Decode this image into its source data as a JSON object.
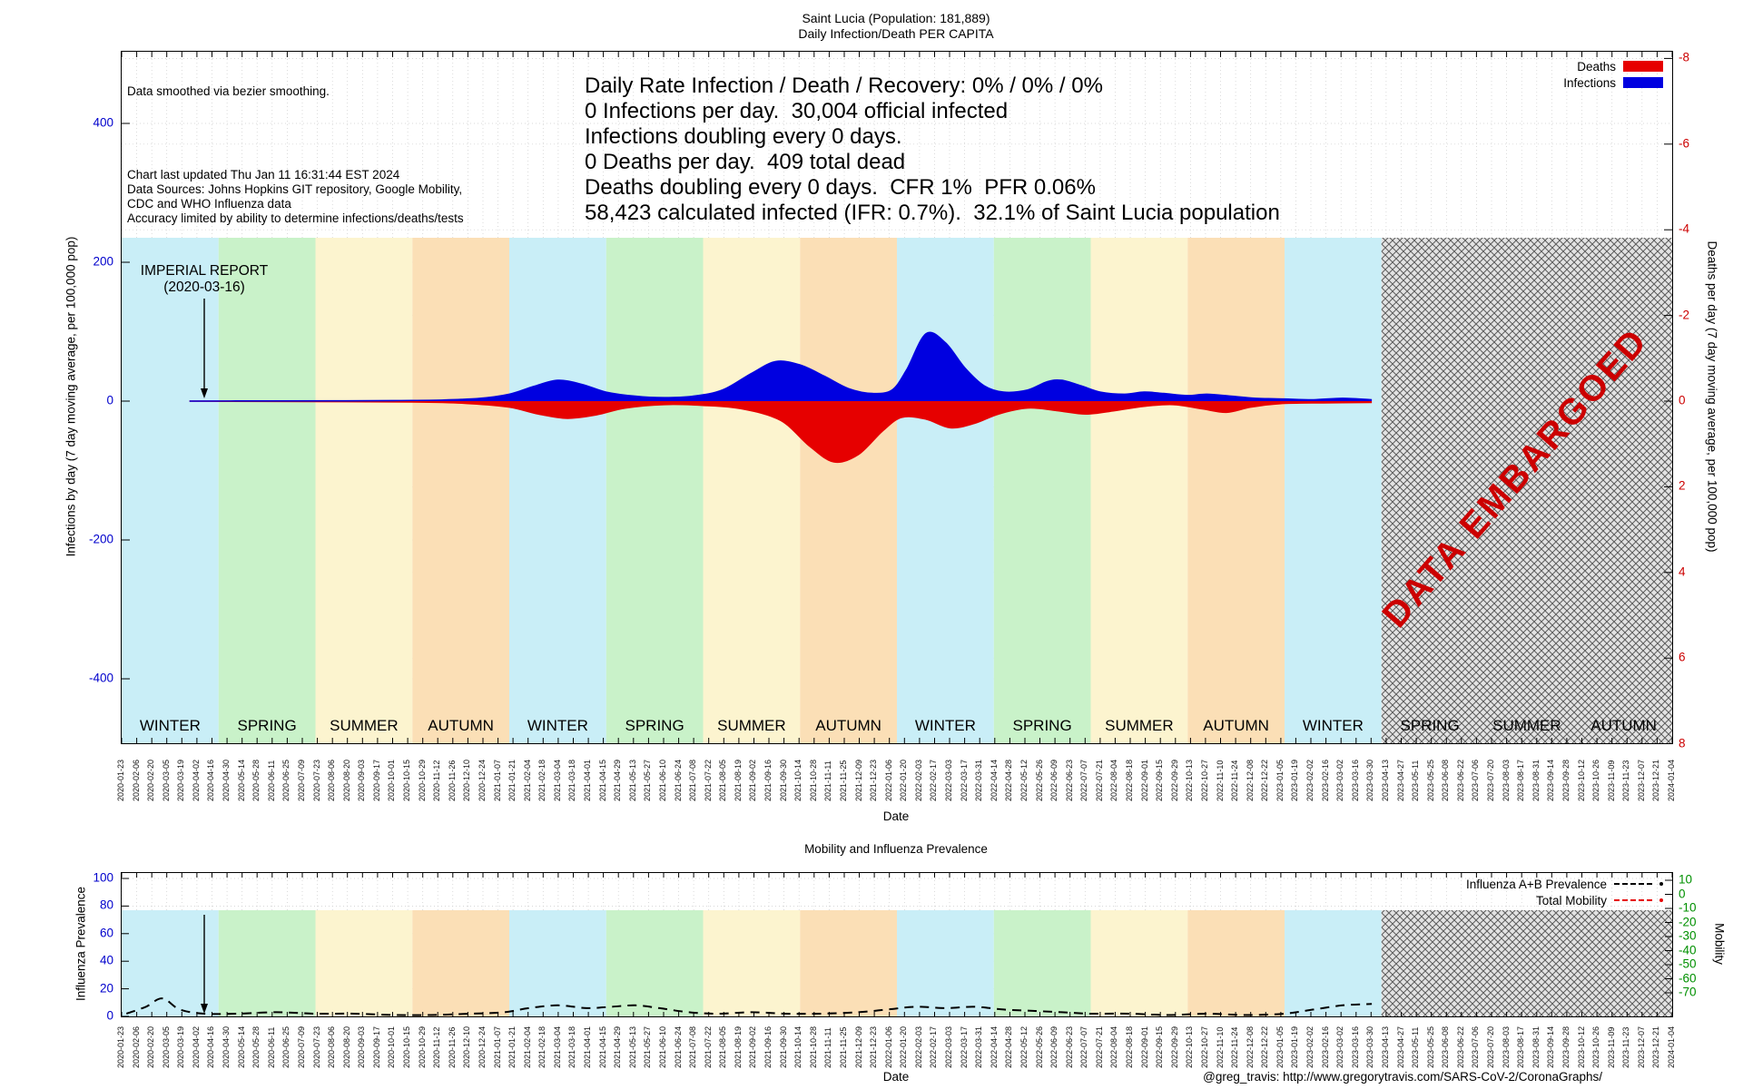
{
  "page": {
    "title_line1": "Saint Lucia (Population: 181,889)",
    "title_line2": "Daily Infection/Death PER CAPITA",
    "footer_credit": "@greg_travis: http://www.gregorytravis.com/SARS-CoV-2/CoronaGraphs/"
  },
  "colors": {
    "infections": "#0000e0",
    "deaths": "#e60000",
    "left_axis_text": "#0000cc",
    "right_axis_text": "#cc0000",
    "flu_axis_text": "#0000cc",
    "mobility_axis_text": "#009000",
    "embargo_text": "#cc0000",
    "seasons": {
      "WINTER": "#c9eef7",
      "SPRING": "#c9f2c9",
      "SUMMER": "#fcf4cf",
      "AUTUMN": "#fbdfb6"
    }
  },
  "main_chart": {
    "info_note": "Data smoothed via bezier smoothing.",
    "info_lines": [
      "Chart last updated Thu Jan 11 16:31:44 EST 2024",
      "Data Sources: Johns Hopkins GIT repository, Google Mobility,",
      "CDC and WHO Influenza data",
      "Accuracy limited by ability to determine infections/deaths/tests"
    ],
    "stats_lines": [
      "Daily Rate Infection / Death / Recovery: 0% / 0% / 0%",
      "0 Infections per day.  30,004 official infected",
      "Infections doubling every 0 days.",
      "0 Deaths per day.  409 total dead",
      "Deaths doubling every 0 days.  CFR 1%  PFR 0.06%",
      "58,423 calculated infected (IFR: 0.7%).  32.1% of Saint Lucia population"
    ],
    "legend": [
      {
        "label": "Deaths",
        "color": "#e60000"
      },
      {
        "label": "Infections",
        "color": "#0000e0"
      }
    ],
    "ylabel_left": "Infections by day (7 day moving average, per 100,000 pop)",
    "ylabel_right": "Deaths per day (7 day moving average, per 100,000 pop)",
    "xlabel": "Date",
    "left_ticks": [
      400,
      200,
      0,
      -200,
      -400
    ],
    "right_ticks": [
      -8,
      -6,
      -4,
      -2,
      0,
      2,
      4,
      6,
      8
    ],
    "annotation": {
      "line1": "IMPERIAL REPORT",
      "line2": "(2020-03-16)"
    },
    "embargo_label": "DATA EMBARGOED",
    "seasons": [
      "WINTER",
      "SPRING",
      "SUMMER",
      "AUTUMN",
      "WINTER",
      "SPRING",
      "SUMMER",
      "AUTUMN",
      "WINTER",
      "SPRING",
      "SUMMER",
      "AUTUMN",
      "WINTER",
      "SPRING",
      "SUMMER",
      "AUTUMN"
    ]
  },
  "bottom_chart": {
    "title": "Mobility and Influenza Prevalence",
    "ylabel_left": "Influenza Prevalence",
    "ylabel_right": "Mobility",
    "xlabel": "Date",
    "left_ticks": [
      100,
      80,
      60,
      40,
      20,
      0
    ],
    "right_ticks": [
      10,
      0,
      -10,
      -20,
      -30,
      -40,
      -50,
      -60,
      -70
    ],
    "legend": [
      {
        "label": "Influenza A+B Prevalence",
        "color": "#000000"
      },
      {
        "label": "Total Mobility",
        "color": "#e60000"
      }
    ]
  },
  "x_tick_dates": [
    "2020-01-23",
    "2020-02-06",
    "2020-02-20",
    "2020-03-05",
    "2020-03-19",
    "2020-04-02",
    "2020-04-16",
    "2020-04-30",
    "2020-05-14",
    "2020-05-28",
    "2020-06-11",
    "2020-06-25",
    "2020-07-09",
    "2020-07-23",
    "2020-08-06",
    "2020-08-20",
    "2020-09-03",
    "2020-09-17",
    "2020-10-01",
    "2020-10-15",
    "2020-10-29",
    "2020-11-12",
    "2020-11-26",
    "2020-12-10",
    "2020-12-24",
    "2021-01-07",
    "2021-01-21",
    "2021-02-04",
    "2021-02-18",
    "2021-03-04",
    "2021-03-18",
    "2021-04-01",
    "2021-04-15",
    "2021-04-29",
    "2021-05-13",
    "2021-05-27",
    "2021-06-10",
    "2021-06-24",
    "2021-07-08",
    "2021-07-22",
    "2021-08-05",
    "2021-08-19",
    "2021-09-02",
    "2021-09-16",
    "2021-09-30",
    "2021-10-14",
    "2021-10-28",
    "2021-11-11",
    "2021-11-25",
    "2021-12-09",
    "2021-12-23",
    "2022-01-06",
    "2022-01-20",
    "2022-02-03",
    "2022-02-17",
    "2022-03-03",
    "2022-03-17",
    "2022-03-31",
    "2022-04-14",
    "2022-04-28",
    "2022-05-12",
    "2022-05-26",
    "2022-06-09",
    "2022-06-23",
    "2022-07-07",
    "2022-07-21",
    "2022-08-04",
    "2022-08-18",
    "2022-09-01",
    "2022-09-15",
    "2022-09-29",
    "2022-10-13",
    "2022-10-27",
    "2022-11-10",
    "2022-11-24",
    "2022-12-08",
    "2022-12-22",
    "2023-01-05",
    "2023-01-19",
    "2023-02-02",
    "2023-02-16",
    "2023-03-02",
    "2023-03-16",
    "2023-03-30",
    "2023-04-13",
    "2023-04-27",
    "2023-05-11",
    "2023-05-25",
    "2023-06-08",
    "2023-06-22",
    "2023-07-06",
    "2023-07-20",
    "2023-08-03",
    "2023-08-17",
    "2023-08-31",
    "2023-09-14",
    "2023-09-28",
    "2023-10-12",
    "2023-10-26",
    "2023-11-09",
    "2023-11-23",
    "2023-12-07",
    "2023-12-21",
    "2024-01-04"
  ],
  "chart_data": [
    {
      "type": "area",
      "title": "Saint Lucia (Population: 181,889) Daily Infection/Death PER CAPITA",
      "x_unit": "season-band index, 0 = start Winter 2020, each band = one season (~3 months), 16 bands ending Autumn 2023",
      "embargo_start_band": 13,
      "left_axis": {
        "label": "Infections by day (7 day moving average, per 100,000 pop)",
        "ticks": [
          400,
          200,
          0,
          -200,
          -400
        ],
        "range": [
          -500,
          500
        ]
      },
      "right_axis": {
        "label": "Deaths per day (7 day moving average, per 100,000 pop)",
        "ticks": [
          -8,
          -6,
          -4,
          -2,
          0,
          2,
          4,
          6,
          8
        ],
        "range": [
          -8,
          8
        ],
        "inverted": true
      },
      "series": [
        {
          "name": "Deaths",
          "axis": "right",
          "color": "#e60000",
          "style": "filled-area-below-zero",
          "points": [
            [
              0.7,
              0
            ],
            [
              3.0,
              0.02
            ],
            [
              3.6,
              0.06
            ],
            [
              4.0,
              0.14
            ],
            [
              4.3,
              0.3
            ],
            [
              4.6,
              0.4
            ],
            [
              4.9,
              0.32
            ],
            [
              5.2,
              0.16
            ],
            [
              5.6,
              0.08
            ],
            [
              6.0,
              0.1
            ],
            [
              6.4,
              0.18
            ],
            [
              6.8,
              0.45
            ],
            [
              7.1,
              1.05
            ],
            [
              7.35,
              1.42
            ],
            [
              7.6,
              1.25
            ],
            [
              7.85,
              0.7
            ],
            [
              8.05,
              0.38
            ],
            [
              8.3,
              0.42
            ],
            [
              8.55,
              0.62
            ],
            [
              8.8,
              0.52
            ],
            [
              9.05,
              0.3
            ],
            [
              9.35,
              0.16
            ],
            [
              9.65,
              0.22
            ],
            [
              9.95,
              0.3
            ],
            [
              10.25,
              0.22
            ],
            [
              10.55,
              0.12
            ],
            [
              10.85,
              0.08
            ],
            [
              11.15,
              0.18
            ],
            [
              11.4,
              0.26
            ],
            [
              11.65,
              0.14
            ],
            [
              11.95,
              0.06
            ],
            [
              12.4,
              0.04
            ],
            [
              12.9,
              0.03
            ]
          ]
        },
        {
          "name": "Infections",
          "axis": "left",
          "color": "#0000e0",
          "style": "filled-area-above-zero",
          "points": [
            [
              0.7,
              0
            ],
            [
              1.5,
              0.3
            ],
            [
              2.2,
              0.4
            ],
            [
              2.8,
              0.8
            ],
            [
              3.3,
              1.5
            ],
            [
              3.7,
              4
            ],
            [
              4.0,
              10
            ],
            [
              4.25,
              21
            ],
            [
              4.5,
              30
            ],
            [
              4.75,
              24
            ],
            [
              5.0,
              13
            ],
            [
              5.3,
              7
            ],
            [
              5.6,
              5
            ],
            [
              5.9,
              7
            ],
            [
              6.2,
              16
            ],
            [
              6.5,
              40
            ],
            [
              6.75,
              57
            ],
            [
              7.0,
              52
            ],
            [
              7.25,
              36
            ],
            [
              7.5,
              18
            ],
            [
              7.75,
              11
            ],
            [
              7.95,
              16
            ],
            [
              8.1,
              45
            ],
            [
              8.3,
              97
            ],
            [
              8.5,
              84
            ],
            [
              8.7,
              48
            ],
            [
              8.9,
              22
            ],
            [
              9.1,
              13
            ],
            [
              9.35,
              16
            ],
            [
              9.55,
              28
            ],
            [
              9.7,
              30
            ],
            [
              9.9,
              22
            ],
            [
              10.1,
              13
            ],
            [
              10.35,
              10
            ],
            [
              10.55,
              13
            ],
            [
              10.75,
              11
            ],
            [
              11.0,
              8
            ],
            [
              11.2,
              10
            ],
            [
              11.45,
              7
            ],
            [
              11.7,
              4
            ],
            [
              12.0,
              3
            ],
            [
              12.3,
              2
            ],
            [
              12.6,
              4
            ],
            [
              12.9,
              2
            ]
          ]
        }
      ]
    },
    {
      "type": "line",
      "title": "Mobility and Influenza Prevalence",
      "x_unit": "same season-band axis as main chart",
      "embargo_start_band": 13,
      "left_axis": {
        "label": "Influenza Prevalence",
        "ticks": [
          100,
          80,
          60,
          40,
          20,
          0
        ],
        "range": [
          0,
          104
        ]
      },
      "right_axis": {
        "label": "Mobility",
        "ticks": [
          10,
          0,
          -10,
          -20,
          -30,
          -40,
          -50,
          -60,
          -70
        ]
      },
      "series": [
        {
          "name": "Influenza A+B Prevalence",
          "axis": "left",
          "color": "#000000",
          "style": "dashed",
          "points": [
            [
              0.05,
              2
            ],
            [
              0.25,
              7
            ],
            [
              0.42,
              13
            ],
            [
              0.6,
              5
            ],
            [
              0.85,
              2
            ],
            [
              1.2,
              2
            ],
            [
              1.6,
              3
            ],
            [
              2.0,
              2
            ],
            [
              2.4,
              2
            ],
            [
              2.8,
              1
            ],
            [
              3.2,
              1
            ],
            [
              3.6,
              2
            ],
            [
              3.95,
              3
            ],
            [
              4.2,
              6
            ],
            [
              4.5,
              8
            ],
            [
              4.8,
              6
            ],
            [
              5.05,
              7
            ],
            [
              5.3,
              8
            ],
            [
              5.55,
              6
            ],
            [
              5.85,
              3
            ],
            [
              6.15,
              2
            ],
            [
              6.5,
              3
            ],
            [
              6.85,
              2
            ],
            [
              7.2,
              2
            ],
            [
              7.6,
              3
            ],
            [
              7.9,
              5
            ],
            [
              8.2,
              7
            ],
            [
              8.5,
              6
            ],
            [
              8.8,
              7
            ],
            [
              9.1,
              5
            ],
            [
              9.4,
              4
            ],
            [
              9.7,
              3
            ],
            [
              10.0,
              2
            ],
            [
              10.4,
              2
            ],
            [
              10.8,
              1
            ],
            [
              11.2,
              2
            ],
            [
              11.6,
              1
            ],
            [
              12.0,
              2
            ],
            [
              12.3,
              5
            ],
            [
              12.6,
              8
            ],
            [
              12.9,
              9
            ]
          ]
        },
        {
          "name": "Total Mobility",
          "axis": "right",
          "color": "#e60000",
          "style": "dashed",
          "points": []
        }
      ]
    }
  ]
}
